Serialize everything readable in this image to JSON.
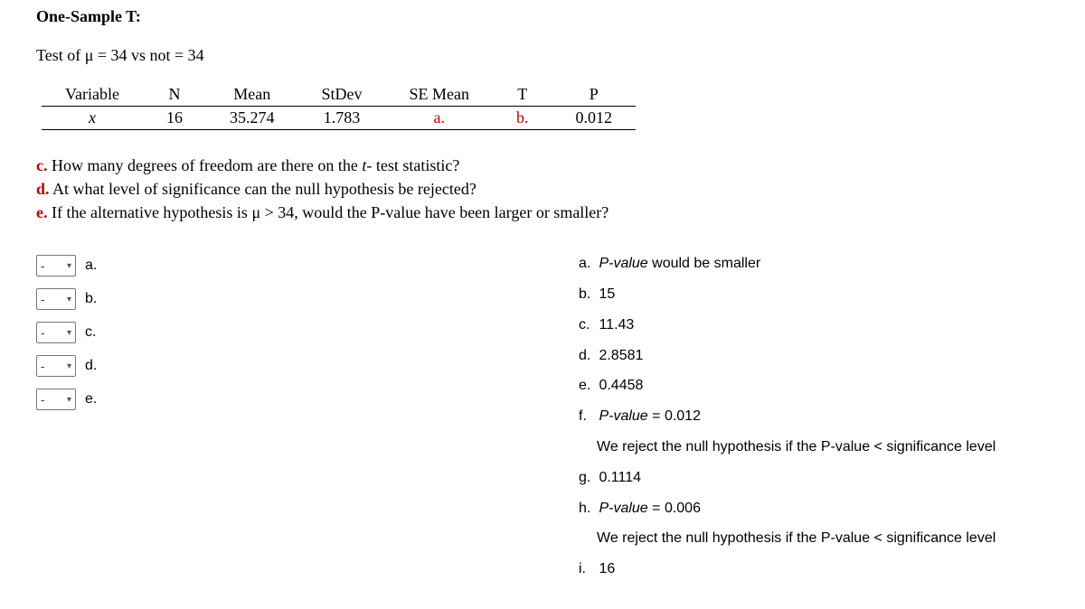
{
  "title": "One-Sample T:",
  "hypothesis": "Test of μ = 34 vs not = 34",
  "table": {
    "headers": {
      "variable": "Variable",
      "n": "N",
      "mean": "Mean",
      "stdev": "StDev",
      "semean": "SE Mean",
      "t": "T",
      "p": "P"
    },
    "row": {
      "variable": "x",
      "n": "16",
      "mean": "35.274",
      "stdev": "1.783",
      "semean": "a.",
      "t": "b.",
      "p": "0.012"
    }
  },
  "questions": {
    "c_label": "c.",
    "c_text": " How many degrees of freedom are there on the ",
    "c_ital": "t-",
    "c_text2": " test statistic?",
    "d_label": "d.",
    "d_text": " At what level of significance can the null hypothesis be rejected?",
    "e_label": "e.",
    "e_text": " If the alternative hypothesis is μ > 34, would the P-value have been larger or smaller?"
  },
  "select_placeholder": "-",
  "match_items": [
    "a.",
    "b.",
    "c.",
    "d.",
    "e."
  ],
  "answers": {
    "a": {
      "lbl": "a.",
      "pval": "P-value",
      "rest": " would be smaller"
    },
    "b": {
      "lbl": "b.",
      "text": "15"
    },
    "c": {
      "lbl": "c.",
      "text": "11.43"
    },
    "d": {
      "lbl": "d.",
      "text": "2.8581"
    },
    "e": {
      "lbl": "e.",
      "text": "0.4458"
    },
    "f": {
      "lbl": "f.",
      "pval": "P-value",
      "eq": " = 0.012",
      "sub": "We reject the null hypothesis if the P-value < significance level"
    },
    "g": {
      "lbl": "g.",
      "text": "0.1114"
    },
    "h": {
      "lbl": "h.",
      "pval": "P-value",
      "eq": " = 0.006",
      "sub": "We reject the null hypothesis if the P-value < significance level"
    },
    "i": {
      "lbl": "i.",
      "text": "16"
    }
  }
}
